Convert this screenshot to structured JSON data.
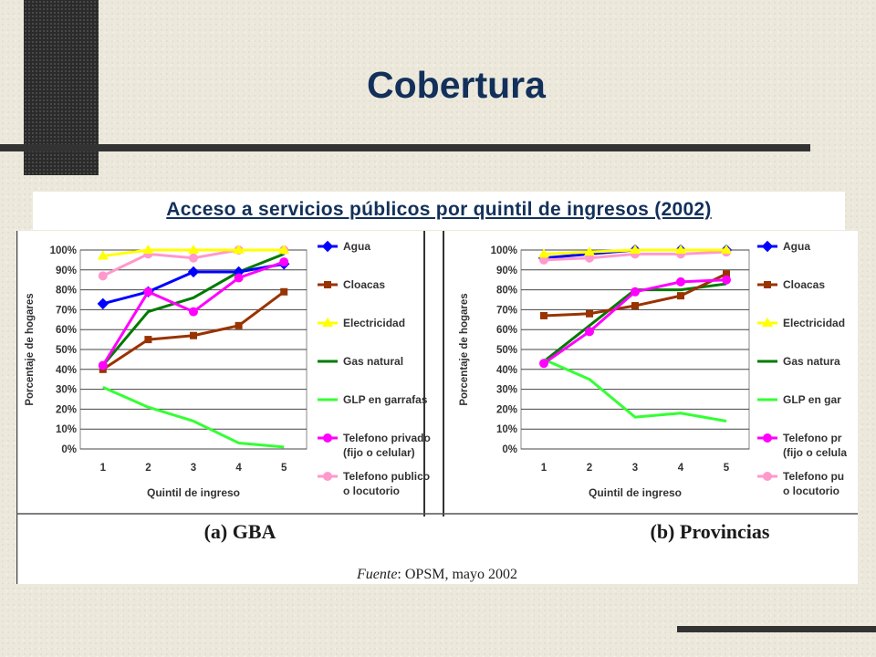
{
  "slide": {
    "title": "Cobertura",
    "subtitle": "Acceso a servicios públicos por quintil de ingresos (2002)",
    "source_label": "Fuente",
    "source_text": ": OPSM, mayo 2002"
  },
  "colors": {
    "title": "#12305a",
    "Agua": "#0000ff",
    "Cloacas": "#993300",
    "Electricidad": "#ffff00",
    "Gas natural": "#007a00",
    "GLP en garrafas": "#33ff33",
    "Telefono privado": "#ff00ff",
    "Telefono publico": "#ff99cc"
  },
  "chart_data": [
    {
      "type": "line",
      "caption": "(a) GBA",
      "xlabel": "Quintil de ingreso",
      "ylabel": "Porcentaje de hogares",
      "categories": [
        "1",
        "2",
        "3",
        "4",
        "5"
      ],
      "ylim": [
        0,
        100
      ],
      "yticks": [
        "0%",
        "10%",
        "20%",
        "30%",
        "40%",
        "50%",
        "60%",
        "70%",
        "80%",
        "90%",
        "100%"
      ],
      "grid": true,
      "legend_position": "right",
      "series": [
        {
          "name": "Agua",
          "legend": [
            "Agua"
          ],
          "color_key": "Agua",
          "marker": "diamond",
          "values": [
            73,
            79,
            89,
            89,
            93
          ]
        },
        {
          "name": "Cloacas",
          "legend": [
            "Cloacas"
          ],
          "color_key": "Cloacas",
          "marker": "square",
          "values": [
            40,
            55,
            57,
            62,
            79
          ]
        },
        {
          "name": "Electricidad",
          "legend": [
            "Electricidad"
          ],
          "color_key": "Electricidad",
          "marker": "triangle",
          "values": [
            97,
            100,
            100,
            100,
            100
          ]
        },
        {
          "name": "Gas natural",
          "legend": [
            "Gas natural"
          ],
          "color_key": "Gas natural",
          "marker": "none",
          "values": [
            42,
            69,
            76,
            89,
            98
          ]
        },
        {
          "name": "GLP en garrafas",
          "legend": [
            "GLP en garrafas"
          ],
          "color_key": "GLP en garrafas",
          "marker": "none",
          "values": [
            31,
            21,
            14,
            3,
            1
          ]
        },
        {
          "name": "Telefono privado (fijo o celular)",
          "legend": [
            "Telefono privado",
            "(fijo o celular)"
          ],
          "color_key": "Telefono privado",
          "marker": "circle",
          "values": [
            42,
            79,
            69,
            86,
            94
          ]
        },
        {
          "name": "Telefono publico o locutorio",
          "legend": [
            "Telefono publico",
            "o locutorio"
          ],
          "color_key": "Telefono publico",
          "marker": "circle",
          "values": [
            87,
            98,
            96,
            100,
            100
          ]
        }
      ]
    },
    {
      "type": "line",
      "caption": "(b) Provincias",
      "xlabel": "Quintil de ingreso",
      "ylabel": "Porcentaje de hogares",
      "categories": [
        "1",
        "2",
        "3",
        "4",
        "5"
      ],
      "ylim": [
        0,
        100
      ],
      "yticks": [
        "0%",
        "10%",
        "20%",
        "30%",
        "40%",
        "50%",
        "60%",
        "70%",
        "80%",
        "90%",
        "100%"
      ],
      "grid": true,
      "legend_position": "right",
      "series": [
        {
          "name": "Agua",
          "legend": [
            "Agua"
          ],
          "color_key": "Agua",
          "marker": "diamond",
          "values": [
            96,
            98,
            100,
            100,
            100
          ]
        },
        {
          "name": "Cloacas",
          "legend": [
            "Cloacas"
          ],
          "color_key": "Cloacas",
          "marker": "square",
          "values": [
            67,
            68,
            72,
            77,
            88
          ]
        },
        {
          "name": "Electricidad",
          "legend": [
            "Electricidad"
          ],
          "color_key": "Electricidad",
          "marker": "triangle",
          "values": [
            98,
            99,
            100,
            100,
            100
          ]
        },
        {
          "name": "Gas natural",
          "legend": [
            "Gas natura"
          ],
          "color_key": "Gas natural",
          "marker": "none",
          "values": [
            44,
            62,
            80,
            80,
            83
          ]
        },
        {
          "name": "GLP en garrafas",
          "legend": [
            "GLP en gar"
          ],
          "color_key": "GLP en garrafas",
          "marker": "none",
          "values": [
            45,
            35,
            16,
            18,
            14
          ]
        },
        {
          "name": "Telefono privado (fijo o celular)",
          "legend": [
            "Telefono pr",
            "(fijo o celula"
          ],
          "color_key": "Telefono privado",
          "marker": "circle",
          "values": [
            43,
            59,
            79,
            84,
            85
          ]
        },
        {
          "name": "Telefono publico o locutorio",
          "legend": [
            "Telefono pu",
            "o locutorio"
          ],
          "color_key": "Telefono publico",
          "marker": "circle",
          "values": [
            95,
            96,
            98,
            98,
            99
          ]
        }
      ]
    }
  ]
}
